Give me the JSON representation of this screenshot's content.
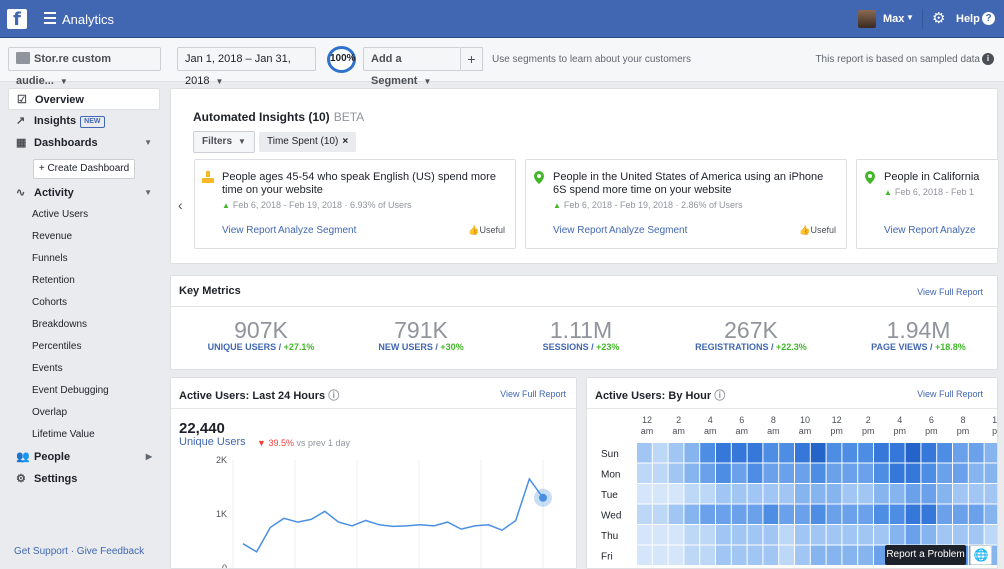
{
  "topbar": {
    "app_title": "Analytics",
    "logo": "f",
    "user_name": "Max",
    "help_label": "Help",
    "help_icon": "?"
  },
  "subbar": {
    "source": "Stor.re custom audie...",
    "date_range": "Jan 1, 2018 – Jan 31, 2018",
    "sample_badge": "100%",
    "segment": "Add a Segment",
    "add_segment": "+",
    "segment_hint": "Use segments to learn about your customers",
    "sampled_note": "This report is based on sampled data",
    "info_icon": "i"
  },
  "sidebar": {
    "overview": "Overview",
    "insights": "Insights",
    "new_badge": "NEW",
    "dashboards": "Dashboards",
    "create_dashboard": "+ Create Dashboard",
    "activity": "Activity",
    "activity_items": [
      "Active Users",
      "Revenue",
      "Funnels",
      "Retention",
      "Cohorts",
      "Breakdowns",
      "Percentiles",
      "Events",
      "Event Debugging",
      "Overlap",
      "Lifetime Value"
    ],
    "people": "People",
    "settings": "Settings",
    "support": "Get Support · Give Feedback"
  },
  "insights": {
    "title": "Automated Insights (10)",
    "beta": "BETA",
    "filters": "Filters",
    "chip": "Time Spent (10)",
    "chip_close": "×",
    "cards": [
      {
        "text": "People ages 45-54 who speak English (US) spend more time on your website",
        "meta": "Feb 6, 2018 - Feb 19, 2018 · 6.93% of Users",
        "view": "View Report",
        "analyze": "Analyze Segment",
        "useful": "Useful"
      },
      {
        "text": "People in the United States of America using an iPhone 6S spend more time on your website",
        "meta": "Feb 6, 2018 - Feb 19, 2018 · 2.86% of Users",
        "view": "View Report",
        "analyze": "Analyze Segment",
        "useful": "Useful"
      },
      {
        "text": "People in California",
        "meta": "Feb 6, 2018 - Feb 1",
        "view": "View Report",
        "analyze": "Analyze"
      }
    ]
  },
  "key_metrics": {
    "title": "Key Metrics",
    "link": "View Full Report",
    "items": [
      {
        "value": "907K",
        "label": "UNIQUE USERS",
        "delta": "+27.1%"
      },
      {
        "value": "791K",
        "label": "NEW USERS",
        "delta": "+30%"
      },
      {
        "value": "1.11M",
        "label": "SESSIONS",
        "delta": "+23%"
      },
      {
        "value": "267K",
        "label": "REGISTRATIONS",
        "delta": "+22.3%"
      },
      {
        "value": "1.94M",
        "label": "PAGE VIEWS",
        "delta": "+18.8%"
      }
    ]
  },
  "active_users": {
    "title": "Active Users: Last 24 Hours",
    "link": "View Full Report",
    "big_number": "22,440",
    "metric_label": "Unique Users",
    "delta": "39.5%",
    "delta_suffix": "vs prev 1 day",
    "y_ticks": [
      "2K",
      "1K",
      "0"
    ]
  },
  "by_hour": {
    "title": "Active Users: By Hour",
    "link": "View Full Report",
    "hours": [
      [
        "12",
        "am"
      ],
      [
        "2",
        "am"
      ],
      [
        "4",
        "am"
      ],
      [
        "6",
        "am"
      ],
      [
        "8",
        "am"
      ],
      [
        "10",
        "am"
      ],
      [
        "12",
        "pm"
      ],
      [
        "2",
        "pm"
      ],
      [
        "4",
        "pm"
      ],
      [
        "6",
        "pm"
      ],
      [
        "8",
        "pm"
      ],
      [
        "1",
        "p"
      ]
    ],
    "days": [
      "Sun",
      "Mon",
      "Tue",
      "Wed",
      "Thu",
      "Fri"
    ]
  },
  "footer": {
    "report_problem": "Report a Problem"
  },
  "colors": {
    "brand": "#4267b2",
    "positive": "#42b72a",
    "negative": "#fa3e3e",
    "line": "#4a90e2"
  },
  "chart_data": [
    {
      "type": "line",
      "ylim": [
        0,
        2000
      ],
      "y_ticks": [
        "2K",
        "1K",
        "0"
      ],
      "series": [
        {
          "values": [
            450,
            300,
            750,
            920,
            850,
            900,
            1050,
            850,
            780,
            880,
            800,
            770,
            780,
            800,
            780,
            850,
            720,
            780,
            800,
            700,
            880,
            1650,
            1300
          ]
        }
      ]
    },
    {
      "type": "heatmap",
      "x_labels": [
        "12 am",
        "2 am",
        "4 am",
        "6 am",
        "8 am",
        "10 am",
        "12 pm",
        "2 pm",
        "4 pm",
        "6 pm",
        "8 pm",
        "1 p"
      ],
      "y_labels": [
        "Sun",
        "Mon",
        "Tue",
        "Wed",
        "Thu",
        "Fri"
      ],
      "values": [
        [
          4,
          3,
          4,
          5,
          7,
          8,
          8,
          8,
          7,
          7,
          8,
          9,
          7,
          7,
          7,
          8,
          8,
          9,
          8,
          7,
          6,
          6,
          5,
          5
        ],
        [
          3,
          3,
          4,
          5,
          6,
          7,
          6,
          7,
          6,
          6,
          6,
          7,
          6,
          6,
          6,
          7,
          8,
          8,
          7,
          6,
          6,
          5,
          5,
          5
        ],
        [
          2,
          2,
          2,
          3,
          3,
          4,
          4,
          4,
          4,
          4,
          5,
          5,
          5,
          4,
          4,
          5,
          5,
          6,
          6,
          5,
          4,
          4,
          4,
          4
        ],
        [
          3,
          3,
          4,
          5,
          6,
          6,
          6,
          6,
          7,
          6,
          6,
          7,
          6,
          6,
          6,
          7,
          7,
          8,
          8,
          6,
          6,
          6,
          5,
          5
        ],
        [
          2,
          2,
          2,
          3,
          3,
          4,
          4,
          4,
          4,
          3,
          4,
          4,
          4,
          4,
          4,
          4,
          5,
          6,
          5,
          4,
          4,
          4,
          3,
          3
        ],
        [
          2,
          2,
          2,
          3,
          3,
          4,
          4,
          4,
          4,
          3,
          4,
          5,
          5,
          5,
          5,
          6,
          9,
          9,
          10,
          8,
          7,
          6,
          5,
          5
        ]
      ]
    }
  ]
}
